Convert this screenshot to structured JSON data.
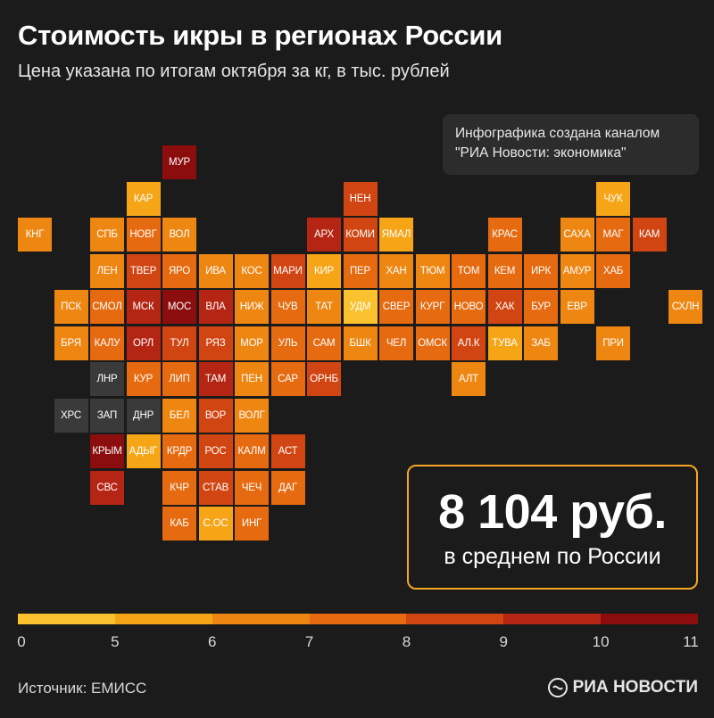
{
  "header": {
    "title": "Стоимость икры в регионах России",
    "subtitle": "Цена указана по итогам октября за кг, в тыс. рублей"
  },
  "credit": {
    "line1": "Инфографика создана каналом",
    "line2": "\"РИА Новости: экономика\""
  },
  "average": {
    "value": "8 104 руб.",
    "label": "в среднем по России"
  },
  "footer": {
    "source": "Источник: ЕМИСС",
    "logo_text": "РИА НОВОСТИ"
  },
  "colors": {
    "background": "#1b1b1b",
    "accent": "#f5a623",
    "no_data": "#3a3a3a"
  },
  "chart_data": {
    "type": "heatmap",
    "title": "Стоимость икры в регионах России",
    "subtitle": "Цена указана по итогам октября за кг, в тыс. рублей",
    "legend": {
      "ticks": [
        "0",
        "5",
        "6",
        "7",
        "8",
        "9",
        "10",
        "11"
      ],
      "bins": [
        {
          "range": [
            0,
            5
          ],
          "color": "#f9c22e"
        },
        {
          "range": [
            5,
            6
          ],
          "color": "#f5a516"
        },
        {
          "range": [
            6,
            7
          ],
          "color": "#ee8612"
        },
        {
          "range": [
            7,
            8
          ],
          "color": "#e66a10"
        },
        {
          "range": [
            8,
            9
          ],
          "color": "#d14512"
        },
        {
          "range": [
            9,
            10
          ],
          "color": "#b52514"
        },
        {
          "range": [
            10,
            11
          ],
          "color": "#8c0d0d"
        }
      ]
    },
    "regions": [
      {
        "label": "МУР",
        "col": 4,
        "row": 0,
        "bin": 6
      },
      {
        "label": "КАР",
        "col": 3,
        "row": 1,
        "bin": 1
      },
      {
        "label": "НЕН",
        "col": 9,
        "row": 1,
        "bin": 4
      },
      {
        "label": "ЧУК",
        "col": 16,
        "row": 1,
        "bin": 1
      },
      {
        "label": "КНГ",
        "col": 0,
        "row": 2,
        "bin": 2
      },
      {
        "label": "СПБ",
        "col": 2,
        "row": 2,
        "bin": 2
      },
      {
        "label": "НОВГ",
        "col": 3,
        "row": 2,
        "bin": 3
      },
      {
        "label": "ВОЛ",
        "col": 4,
        "row": 2,
        "bin": 2
      },
      {
        "label": "АРХ",
        "col": 8,
        "row": 2,
        "bin": 5
      },
      {
        "label": "КОМИ",
        "col": 9,
        "row": 2,
        "bin": 4
      },
      {
        "label": "ЯМАЛ",
        "col": 10,
        "row": 2,
        "bin": 1
      },
      {
        "label": "КРАС",
        "col": 13,
        "row": 2,
        "bin": 3
      },
      {
        "label": "САХА",
        "col": 15,
        "row": 2,
        "bin": 2
      },
      {
        "label": "МАГ",
        "col": 16,
        "row": 2,
        "bin": 3
      },
      {
        "label": "КАМ",
        "col": 17,
        "row": 2,
        "bin": 4
      },
      {
        "label": "ЛЕН",
        "col": 2,
        "row": 3,
        "bin": 2
      },
      {
        "label": "ТВЕР",
        "col": 3,
        "row": 3,
        "bin": 4
      },
      {
        "label": "ЯРО",
        "col": 4,
        "row": 3,
        "bin": 3
      },
      {
        "label": "ИВА",
        "col": 5,
        "row": 3,
        "bin": 2
      },
      {
        "label": "КОС",
        "col": 6,
        "row": 3,
        "bin": 2
      },
      {
        "label": "МАРИ",
        "col": 7,
        "row": 3,
        "bin": 4
      },
      {
        "label": "КИР",
        "col": 8,
        "row": 3,
        "bin": 1
      },
      {
        "label": "ПЕР",
        "col": 9,
        "row": 3,
        "bin": 3
      },
      {
        "label": "ХАН",
        "col": 10,
        "row": 3,
        "bin": 2
      },
      {
        "label": "ТЮМ",
        "col": 11,
        "row": 3,
        "bin": 2
      },
      {
        "label": "ТОМ",
        "col": 12,
        "row": 3,
        "bin": 3
      },
      {
        "label": "КЕМ",
        "col": 13,
        "row": 3,
        "bin": 3
      },
      {
        "label": "ИРК",
        "col": 14,
        "row": 3,
        "bin": 3
      },
      {
        "label": "АМУР",
        "col": 15,
        "row": 3,
        "bin": 2
      },
      {
        "label": "ХАБ",
        "col": 16,
        "row": 3,
        "bin": 3
      },
      {
        "label": "ПСК",
        "col": 1,
        "row": 4,
        "bin": 2
      },
      {
        "label": "СМОЛ",
        "col": 2,
        "row": 4,
        "bin": 3
      },
      {
        "label": "МСК",
        "col": 3,
        "row": 4,
        "bin": 5
      },
      {
        "label": "МОС",
        "col": 4,
        "row": 4,
        "bin": 6
      },
      {
        "label": "ВЛА",
        "col": 5,
        "row": 4,
        "bin": 5
      },
      {
        "label": "НИЖ",
        "col": 6,
        "row": 4,
        "bin": 2
      },
      {
        "label": "ЧУВ",
        "col": 7,
        "row": 4,
        "bin": 3
      },
      {
        "label": "ТАТ",
        "col": 8,
        "row": 4,
        "bin": 2
      },
      {
        "label": "УДМ",
        "col": 9,
        "row": 4,
        "bin": 0
      },
      {
        "label": "СВЕР",
        "col": 10,
        "row": 4,
        "bin": 3
      },
      {
        "label": "КУРГ",
        "col": 11,
        "row": 4,
        "bin": 3
      },
      {
        "label": "НОВО",
        "col": 12,
        "row": 4,
        "bin": 3
      },
      {
        "label": "ХАК",
        "col": 13,
        "row": 4,
        "bin": 4
      },
      {
        "label": "БУР",
        "col": 14,
        "row": 4,
        "bin": 3
      },
      {
        "label": "ЕВР",
        "col": 15,
        "row": 4,
        "bin": 2
      },
      {
        "label": "СХЛН",
        "col": 18,
        "row": 4,
        "bin": 2
      },
      {
        "label": "БРЯ",
        "col": 1,
        "row": 5,
        "bin": 2
      },
      {
        "label": "КАЛУ",
        "col": 2,
        "row": 5,
        "bin": 3
      },
      {
        "label": "ОРЛ",
        "col": 3,
        "row": 5,
        "bin": 5
      },
      {
        "label": "ТУЛ",
        "col": 4,
        "row": 5,
        "bin": 4
      },
      {
        "label": "РЯЗ",
        "col": 5,
        "row": 5,
        "bin": 4
      },
      {
        "label": "МОР",
        "col": 6,
        "row": 5,
        "bin": 2
      },
      {
        "label": "УЛЬ",
        "col": 7,
        "row": 5,
        "bin": 3
      },
      {
        "label": "САМ",
        "col": 8,
        "row": 5,
        "bin": 3
      },
      {
        "label": "БШК",
        "col": 9,
        "row": 5,
        "bin": 2
      },
      {
        "label": "ЧЕЛ",
        "col": 10,
        "row": 5,
        "bin": 3
      },
      {
        "label": "ОМСК",
        "col": 11,
        "row": 5,
        "bin": 3
      },
      {
        "label": "АЛ.К",
        "col": 12,
        "row": 5,
        "bin": 4
      },
      {
        "label": "ТУВА",
        "col": 13,
        "row": 5,
        "bin": 1
      },
      {
        "label": "ЗАБ",
        "col": 14,
        "row": 5,
        "bin": 2
      },
      {
        "label": "ПРИ",
        "col": 16,
        "row": 5,
        "bin": 2
      },
      {
        "label": "ЛНР",
        "col": 2,
        "row": 6,
        "bin": -1
      },
      {
        "label": "КУР",
        "col": 3,
        "row": 6,
        "bin": 3
      },
      {
        "label": "ЛИП",
        "col": 4,
        "row": 6,
        "bin": 3
      },
      {
        "label": "ТАМ",
        "col": 5,
        "row": 6,
        "bin": 5
      },
      {
        "label": "ПЕН",
        "col": 6,
        "row": 6,
        "bin": 2
      },
      {
        "label": "САР",
        "col": 7,
        "row": 6,
        "bin": 3
      },
      {
        "label": "ОРНБ",
        "col": 8,
        "row": 6,
        "bin": 4
      },
      {
        "label": "АЛТ",
        "col": 12,
        "row": 6,
        "bin": 2
      },
      {
        "label": "ХРС",
        "col": 1,
        "row": 7,
        "bin": -1
      },
      {
        "label": "ЗАП",
        "col": 2,
        "row": 7,
        "bin": -1
      },
      {
        "label": "ДНР",
        "col": 3,
        "row": 7,
        "bin": -1
      },
      {
        "label": "БЕЛ",
        "col": 4,
        "row": 7,
        "bin": 2
      },
      {
        "label": "ВОР",
        "col": 5,
        "row": 7,
        "bin": 4
      },
      {
        "label": "ВОЛГ",
        "col": 6,
        "row": 7,
        "bin": 2
      },
      {
        "label": "КРЫМ",
        "col": 2,
        "row": 8,
        "bin": 6
      },
      {
        "label": "АДЫГ",
        "col": 3,
        "row": 8,
        "bin": 1
      },
      {
        "label": "КРДР",
        "col": 4,
        "row": 8,
        "bin": 3
      },
      {
        "label": "РОС",
        "col": 5,
        "row": 8,
        "bin": 4
      },
      {
        "label": "КАЛМ",
        "col": 6,
        "row": 8,
        "bin": 3
      },
      {
        "label": "АСТ",
        "col": 7,
        "row": 8,
        "bin": 4
      },
      {
        "label": "СВС",
        "col": 2,
        "row": 9,
        "bin": 5
      },
      {
        "label": "КЧР",
        "col": 4,
        "row": 9,
        "bin": 3
      },
      {
        "label": "СТАВ",
        "col": 5,
        "row": 9,
        "bin": 4
      },
      {
        "label": "ЧЕЧ",
        "col": 6,
        "row": 9,
        "bin": 3
      },
      {
        "label": "ДАГ",
        "col": 7,
        "row": 9,
        "bin": 3
      },
      {
        "label": "КАБ",
        "col": 4,
        "row": 10,
        "bin": 3
      },
      {
        "label": "С.ОС",
        "col": 5,
        "row": 10,
        "bin": 1
      },
      {
        "label": "ИНГ",
        "col": 6,
        "row": 10,
        "bin": 3
      }
    ]
  }
}
